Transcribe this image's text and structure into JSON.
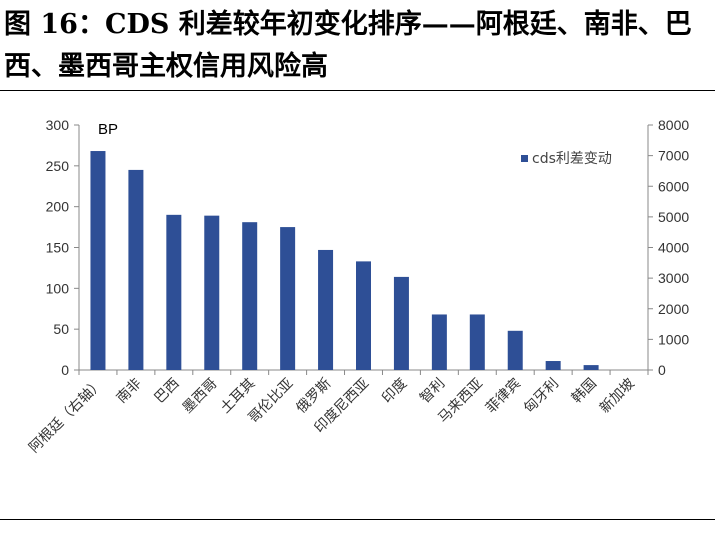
{
  "figure": {
    "title": "图 16：CDS 利差较年初变化排序——阿根廷、南非、巴西、墨西哥主权信用风险高"
  },
  "chart_data": {
    "type": "bar",
    "categories": [
      "阿根廷（右轴）",
      "南非",
      "巴西",
      "墨西哥",
      "土耳其",
      "哥伦比亚",
      "俄罗斯",
      "印度尼西亚",
      "印度",
      "智利",
      "马来西亚",
      "菲律宾",
      "匈牙利",
      "韩国",
      "新加坡"
    ],
    "series": [
      {
        "name": "cds利差变动",
        "values": [
          7150,
          245,
          190,
          189,
          181,
          175,
          147,
          133,
          114,
          68,
          68,
          48,
          11,
          6,
          0
        ],
        "axis": [
          "right",
          "left",
          "left",
          "left",
          "left",
          "left",
          "left",
          "left",
          "left",
          "left",
          "left",
          "left",
          "left",
          "left",
          "left"
        ],
        "color": "#2e4f96"
      }
    ],
    "unit_label": "BP",
    "ylim": [
      0,
      300
    ],
    "y_ticks": [
      0,
      50,
      100,
      150,
      200,
      250,
      300
    ],
    "y2lim": [
      0,
      8000
    ],
    "y2_ticks": [
      0,
      1000,
      2000,
      3000,
      4000,
      5000,
      6000,
      7000,
      8000
    ],
    "legend_position": "top-right",
    "grid": false
  }
}
